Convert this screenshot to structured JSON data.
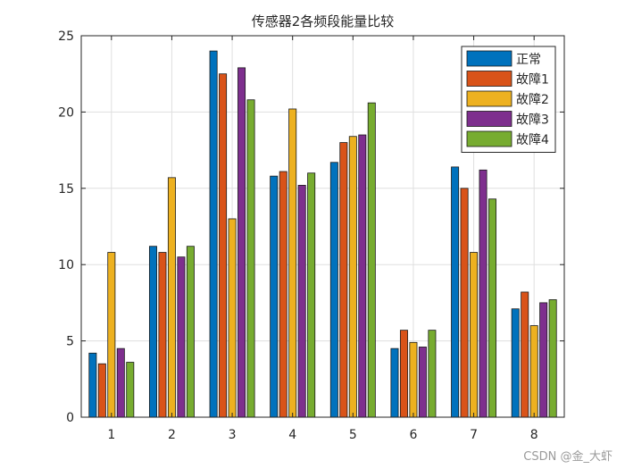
{
  "chart_data": {
    "type": "bar",
    "title": "传感器2各频段能量比较",
    "xlabel": "",
    "ylabel": "",
    "categories": [
      "1",
      "2",
      "3",
      "4",
      "5",
      "6",
      "7",
      "8"
    ],
    "ylim": [
      0,
      25
    ],
    "yticks": [
      "0",
      "5",
      "10",
      "15",
      "20",
      "25"
    ],
    "grid": true,
    "legend_position": "top-right",
    "series": [
      {
        "name": "正常",
        "color": "#0072BD",
        "values": [
          4.2,
          11.2,
          24.0,
          15.8,
          16.7,
          4.5,
          16.4,
          7.1
        ]
      },
      {
        "name": "故障1",
        "color": "#D95319",
        "values": [
          3.5,
          10.8,
          22.5,
          16.1,
          18.0,
          5.7,
          15.0,
          8.2
        ]
      },
      {
        "name": "故障2",
        "color": "#EDB120",
        "values": [
          10.8,
          15.7,
          13.0,
          20.2,
          18.4,
          4.9,
          10.8,
          6.0
        ]
      },
      {
        "name": "故障3",
        "color": "#7E2F8E",
        "values": [
          4.5,
          10.5,
          22.9,
          15.2,
          18.5,
          4.6,
          16.2,
          7.5
        ]
      },
      {
        "name": "故障4",
        "color": "#77AC30",
        "values": [
          3.6,
          11.2,
          20.8,
          16.0,
          20.6,
          5.7,
          14.3,
          7.7
        ]
      }
    ]
  },
  "watermark": "CSDN @金_大虾"
}
